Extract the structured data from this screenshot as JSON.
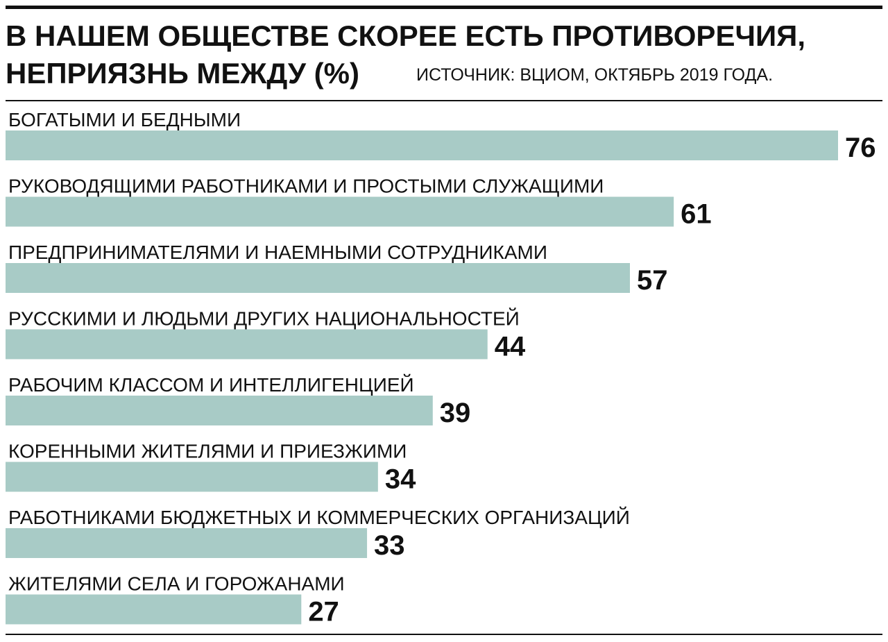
{
  "header": {
    "title_line_1": "В НАШЕМ ОБЩЕСТВЕ СКОРЕЕ ЕСТЬ ПРОТИВОРЕЧИЯ,",
    "title_line_2": "НЕПРИЯЗНЬ МЕЖДУ (%)",
    "source": "ИСТОЧНИК: ВЦИОМ, ОКТЯБРЬ 2019 ГОДА."
  },
  "chart_data": {
    "type": "bar",
    "orientation": "horizontal",
    "title": "В НАШЕМ ОБЩЕСТВЕ СКОРЕЕ ЕСТЬ ПРОТИВОРЕЧИЯ, НЕПРИЯЗНЬ МЕЖДУ (%)",
    "source": "ИСТОЧНИК: ВЦИОМ, ОКТЯБРЬ 2019 ГОДА.",
    "categories": [
      "БОГАТЫМИ И БЕДНЫМИ",
      "РУКОВОДЯЩИМИ РАБОТНИКАМИ И ПРОСТЫМИ СЛУЖАЩИМИ",
      "ПРЕДПРИНИМАТЕЛЯМИ И НАЕМНЫМИ СОТРУДНИКАМИ",
      "РУССКИМИ И ЛЮДЬМИ ДРУГИХ НАЦИОНАЛЬНОСТЕЙ",
      "РАБОЧИМ КЛАССОМ И ИНТЕЛЛИГЕНЦИЕЙ",
      "КОРЕННЫМИ ЖИТЕЛЯМИ И ПРИЕЗЖИМИ",
      "РАБОТНИКАМИ БЮДЖЕТНЫХ И КОММЕРЧЕСКИХ ОРГАНИЗАЦИЙ",
      "ЖИТЕЛЯМИ СЕЛА И ГОРОЖАНАМИ"
    ],
    "values": [
      76,
      61,
      57,
      44,
      39,
      34,
      33,
      27
    ],
    "xlim": [
      0,
      76
    ],
    "bar_color": "#a8cbc6",
    "grid": false,
    "legend": "none"
  }
}
